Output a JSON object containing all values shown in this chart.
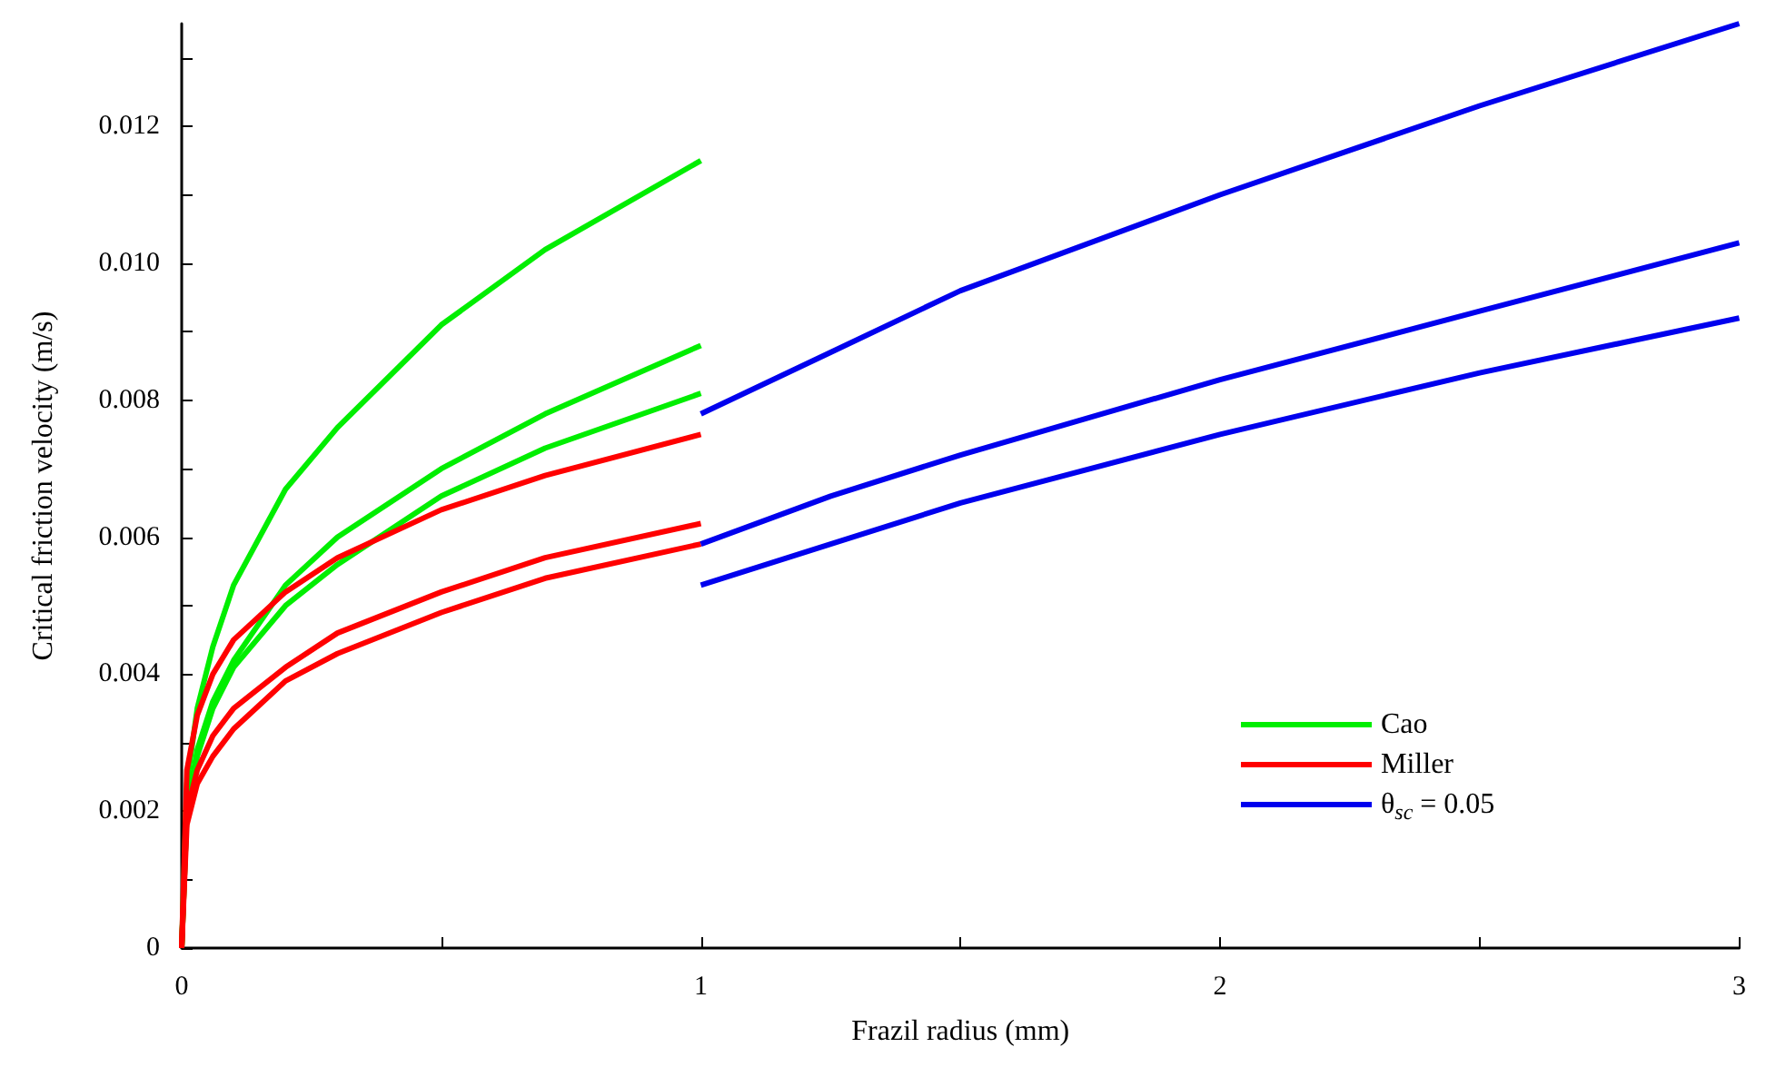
{
  "chart_data": {
    "type": "line",
    "xlabel": "Frazil radius (mm)",
    "ylabel": "Critical friction velocity (m/s)",
    "x": [
      0,
      0.01,
      0.03,
      0.06,
      0.1,
      0.2,
      0.3,
      0.5,
      0.7,
      1
    ],
    "series": [
      {
        "name": "Cao",
        "color": "#00ee00",
        "values": [
          0,
          0.0024,
          0.0035,
          0.0044,
          0.0053,
          0.0067,
          0.0076,
          0.0091,
          0.0102,
          0.0115
        ]
      },
      {
        "color": "#00ee00",
        "values": [
          0,
          0.002,
          0.0029,
          0.0036,
          0.0042,
          0.0053,
          0.006,
          0.007,
          0.0078,
          0.0088
        ]
      },
      {
        "color": "#00ee00",
        "values": [
          0,
          0.002,
          0.0028,
          0.0035,
          0.0041,
          0.005,
          0.0056,
          0.0066,
          0.0073,
          0.0081
        ]
      },
      {
        "name": "Miller",
        "color": "#ff0000",
        "values": [
          0,
          0.0026,
          0.0034,
          0.004,
          0.0045,
          0.0052,
          0.0057,
          0.0064,
          0.0069,
          0.0075
        ]
      },
      {
        "color": "#ff0000",
        "values": [
          0,
          0.002,
          0.0026,
          0.0031,
          0.0035,
          0.0041,
          0.0046,
          0.0052,
          0.0057,
          0.0062
        ]
      },
      {
        "color": "#ff0000",
        "values": [
          0,
          0.0018,
          0.0024,
          0.0028,
          0.0032,
          0.0039,
          0.0043,
          0.0049,
          0.0054,
          0.0059
        ]
      },
      {
        "name": "θ$_{sc}$ = 0.05",
        "color": "#0000ee",
        "x": [
          1,
          1.25,
          1.5,
          2,
          2.5,
          3
        ],
        "values": [
          0.0078,
          0.0087,
          0.0096,
          0.011,
          0.0123,
          0.0135
        ]
      },
      {
        "color": "#0000ee",
        "x": [
          1,
          1.25,
          1.5,
          2,
          2.5,
          3
        ],
        "values": [
          0.0059,
          0.0066,
          0.0072,
          0.0083,
          0.0093,
          0.0103
        ]
      },
      {
        "color": "#0000ee",
        "x": [
          1,
          1.25,
          1.5,
          2,
          2.5,
          3
        ],
        "values": [
          0.0053,
          0.0059,
          0.0065,
          0.0075,
          0.0084,
          0.0092
        ]
      }
    ],
    "xlim": [
      0,
      3
    ],
    "xticks": [
      0,
      {
        "value": 0.5,
        "label": null
      },
      1,
      {
        "value": 1.5,
        "label": null
      },
      2,
      {
        "value": 2.5,
        "label": null
      },
      3
    ],
    "ylim": [
      0,
      0.0135
    ],
    "yticks": [
      0,
      {
        "value": 0.001,
        "label": null
      },
      0.002,
      {
        "value": 0.003,
        "label": null
      },
      0.004,
      {
        "value": 0.005,
        "label": null
      },
      0.006,
      {
        "value": 0.007,
        "label": null
      },
      0.008,
      {
        "value": 0.009,
        "label": null
      },
      {
        "value": 0.01,
        "label": "0.010"
      },
      {
        "value": 0.011,
        "label": null
      },
      0.012,
      {
        "value": 0.013,
        "label": null
      }
    ],
    "grid": false,
    "legend": "bottom right",
    "line_style": "solid"
  }
}
